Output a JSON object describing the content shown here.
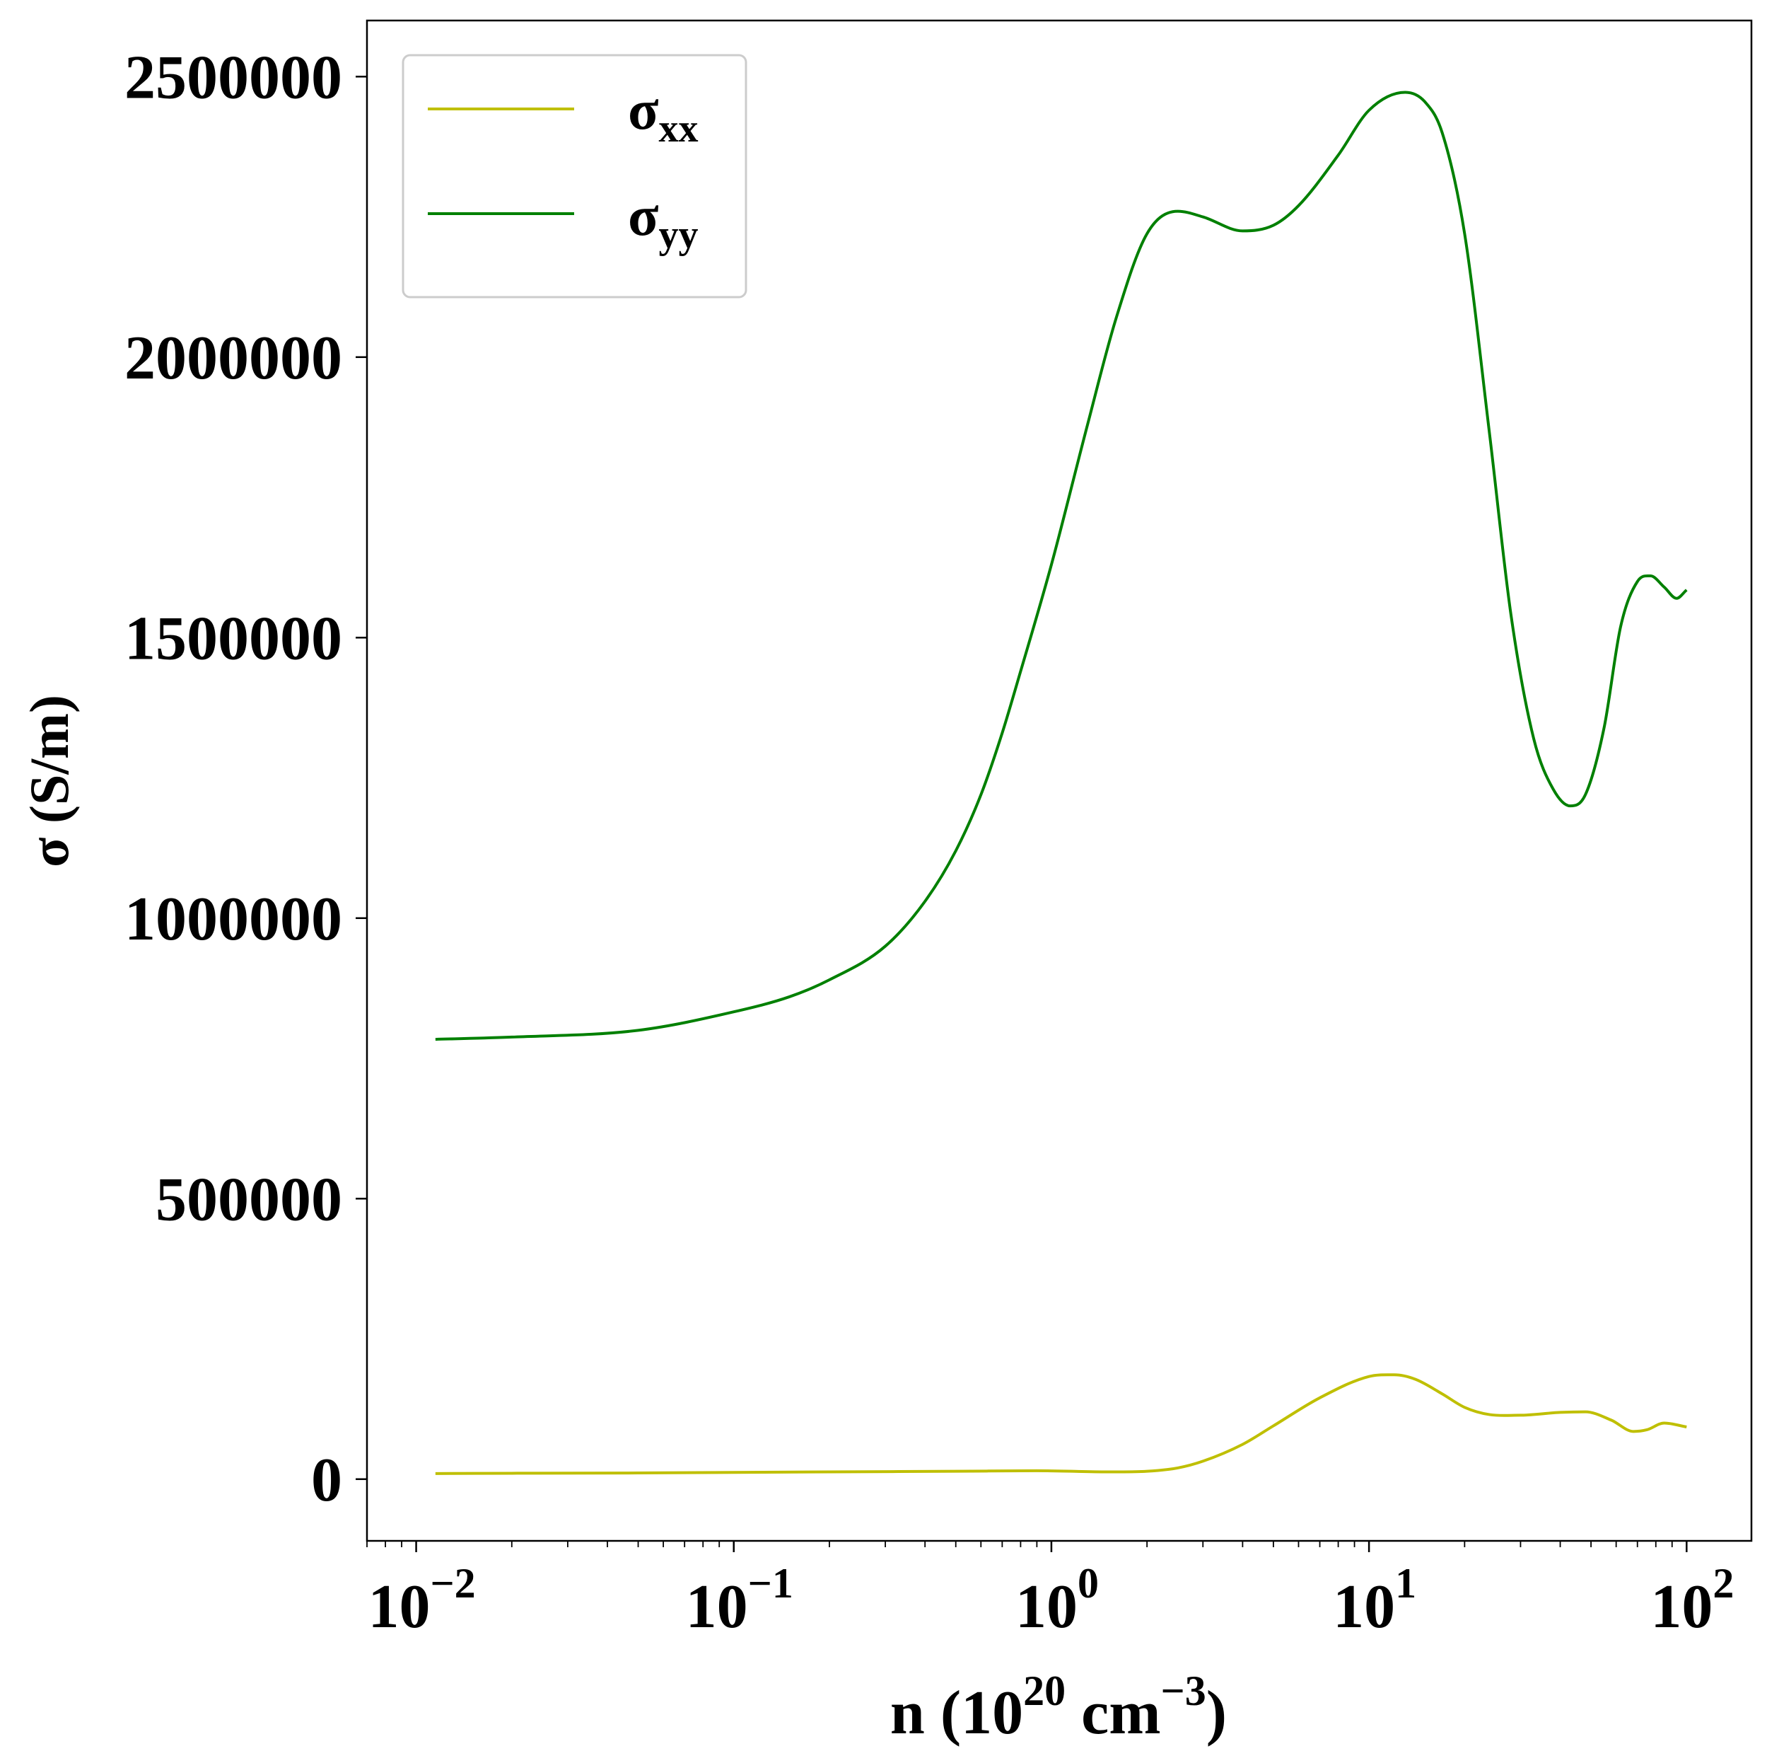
{
  "chart_data": {
    "type": "line",
    "xscale": "log",
    "xlim": [
      0.007,
      160
    ],
    "ylim": [
      -110000,
      2600000
    ],
    "grid": false,
    "legend_position": "top-left",
    "xlabel": {
      "base": "n (10",
      "exp1": "20",
      "mid": " cm",
      "exp2": "−3",
      "end": ")"
    },
    "ylabel": "σ (S/m)",
    "yticks": [
      0,
      500000,
      1000000,
      1500000,
      2000000,
      2500000
    ],
    "yticklabels": [
      "0",
      "500000",
      "1000000",
      "1500000",
      "2000000",
      "2500000"
    ],
    "xticks": [
      {
        "value": 0.01,
        "base": "10",
        "exp": "−2"
      },
      {
        "value": 0.1,
        "base": "10",
        "exp": "−1"
      },
      {
        "value": 1,
        "base": "10",
        "exp": "0"
      },
      {
        "value": 10,
        "base": "10",
        "exp": "1"
      },
      {
        "value": 100,
        "base": "10",
        "exp": "2"
      }
    ],
    "series": [
      {
        "name": "σxx",
        "symbol": "σ",
        "subscript": "xx",
        "color": "#bfbf00",
        "points": [
          [
            0.0115,
            10000
          ],
          [
            0.02,
            10500
          ],
          [
            0.05,
            11000
          ],
          [
            0.1,
            12000
          ],
          [
            0.2,
            13000
          ],
          [
            0.5,
            14000
          ],
          [
            0.9,
            15000
          ],
          [
            1.5,
            13000
          ],
          [
            2.0,
            14000
          ],
          [
            2.5,
            20000
          ],
          [
            3.0,
            32000
          ],
          [
            4.0,
            62000
          ],
          [
            5.0,
            95000
          ],
          [
            7.0,
            145000
          ],
          [
            10.0,
            183000
          ],
          [
            12.0,
            186000
          ],
          [
            14.0,
            178000
          ],
          [
            17.0,
            152000
          ],
          [
            20.0,
            128000
          ],
          [
            24.0,
            115000
          ],
          [
            30.0,
            114000
          ],
          [
            40.0,
            119000
          ],
          [
            48.0,
            120000
          ],
          [
            58.0,
            105000
          ],
          [
            68.0,
            85000
          ],
          [
            75.0,
            88000
          ],
          [
            85.0,
            100000
          ],
          [
            100.0,
            93000
          ]
        ]
      },
      {
        "name": "σyy",
        "symbol": "σ",
        "subscript": "yy",
        "color": "#008000",
        "points": [
          [
            0.0115,
            784000
          ],
          [
            0.02,
            788000
          ],
          [
            0.05,
            800000
          ],
          [
            0.1,
            833000
          ],
          [
            0.15,
            860000
          ],
          [
            0.2,
            890000
          ],
          [
            0.3,
            950000
          ],
          [
            0.4,
            1030000
          ],
          [
            0.5,
            1120000
          ],
          [
            0.6,
            1220000
          ],
          [
            0.7,
            1330000
          ],
          [
            0.8,
            1440000
          ],
          [
            1.0,
            1630000
          ],
          [
            1.3,
            1880000
          ],
          [
            1.6,
            2070000
          ],
          [
            2.0,
            2220000
          ],
          [
            2.5,
            2260000
          ],
          [
            3.0,
            2250000
          ],
          [
            4.0,
            2225000
          ],
          [
            5.0,
            2235000
          ],
          [
            6.0,
            2270000
          ],
          [
            8.0,
            2360000
          ],
          [
            10.0,
            2440000
          ],
          [
            13.0,
            2472000
          ],
          [
            15.0,
            2455000
          ],
          [
            17.0,
            2400000
          ],
          [
            20.0,
            2220000
          ],
          [
            24.0,
            1860000
          ],
          [
            28.0,
            1540000
          ],
          [
            33.0,
            1320000
          ],
          [
            38.0,
            1230000
          ],
          [
            43.0,
            1200000
          ],
          [
            48.0,
            1220000
          ],
          [
            55.0,
            1340000
          ],
          [
            62.0,
            1520000
          ],
          [
            70.0,
            1600000
          ],
          [
            77.0,
            1610000
          ],
          [
            85.0,
            1590000
          ],
          [
            93.0,
            1570000
          ],
          [
            100.0,
            1585000
          ]
        ]
      }
    ]
  }
}
